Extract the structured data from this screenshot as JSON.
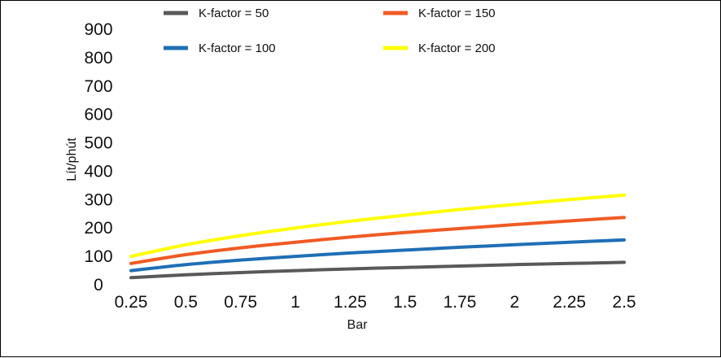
{
  "chart_data": {
    "type": "line",
    "title": "",
    "xlabel": "Bar",
    "ylabel": "Lít/phút",
    "categories": [
      "0.25",
      "0.5",
      "0.75",
      "1",
      "1.25",
      "1.5",
      "1.75",
      "2",
      "2.25",
      "2.5"
    ],
    "x": [
      0.25,
      0.5,
      0.75,
      1,
      1.25,
      1.5,
      1.75,
      2,
      2.25,
      2.5
    ],
    "yticks": [
      "0",
      "100",
      "200",
      "300",
      "400",
      "500",
      "600",
      "700",
      "800",
      "900"
    ],
    "ylim": [
      0,
      900
    ],
    "grid": false,
    "legend_position": "top",
    "series": [
      {
        "name": "K-factor = 50",
        "color": "#595959",
        "values": [
          25,
          35,
          43,
          50,
          56,
          61,
          66,
          71,
          75,
          79
        ]
      },
      {
        "name": "K-factor = 100",
        "color": "#1f6fb5",
        "values": [
          50,
          71,
          87,
          100,
          112,
          122,
          132,
          141,
          150,
          158
        ]
      },
      {
        "name": "K-factor = 150",
        "color": "#f05a24",
        "values": [
          75,
          106,
          130,
          150,
          168,
          184,
          198,
          212,
          225,
          237
        ]
      },
      {
        "name": "K-factor = 200",
        "color": "#ffff00",
        "values": [
          100,
          141,
          173,
          200,
          224,
          245,
          265,
          283,
          300,
          316
        ]
      }
    ]
  }
}
